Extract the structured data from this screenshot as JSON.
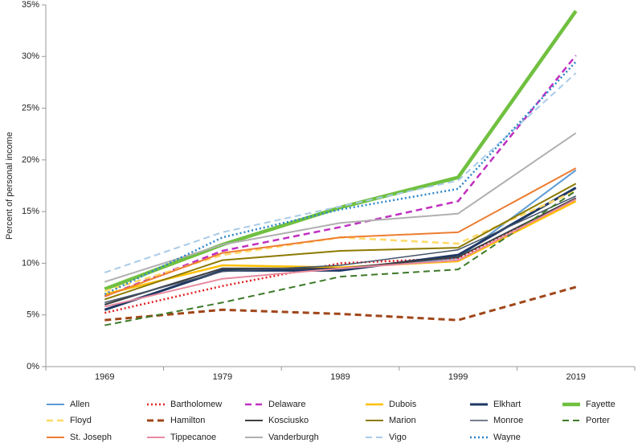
{
  "chart_data": {
    "type": "line",
    "y_label": "Percent of personal income",
    "categories": [
      "1969",
      "1979",
      "1989",
      "1999",
      "2019"
    ],
    "ylim": [
      0,
      35
    ],
    "yticks": [
      {
        "value": 0,
        "label": "0%"
      },
      {
        "value": 5,
        "label": "5%"
      },
      {
        "value": 10,
        "label": "10%"
      },
      {
        "value": 15,
        "label": "15%"
      },
      {
        "value": 20,
        "label": "20%"
      },
      {
        "value": 25,
        "label": "25%"
      },
      {
        "value": 30,
        "label": "30%"
      },
      {
        "value": 35,
        "label": "35%"
      }
    ],
    "series": [
      {
        "name": "Allen",
        "color": "#5b9bd5",
        "dash": "solid",
        "line_width": 2,
        "values": [
          6.0,
          9.5,
          9.5,
          10.5,
          19.0
        ]
      },
      {
        "name": "Bartholomew",
        "color": "#e02020",
        "dash": "dotted",
        "line_width": 2.5,
        "values": [
          5.2,
          7.8,
          10.0,
          10.5,
          16.2
        ]
      },
      {
        "name": "Delaware",
        "color": "#c030c0",
        "dash": "dashed",
        "line_width": 2.5,
        "values": [
          6.8,
          11.2,
          13.5,
          16.0,
          30.1
        ]
      },
      {
        "name": "Dubois",
        "color": "#ffc000",
        "dash": "solid",
        "line_width": 2.5,
        "values": [
          7.0,
          9.8,
          9.6,
          10.2,
          16.0
        ]
      },
      {
        "name": "Elkhart",
        "color": "#1f3864",
        "dash": "solid",
        "line_width": 3,
        "values": [
          5.5,
          9.3,
          9.3,
          10.8,
          17.3
        ]
      },
      {
        "name": "Fayette",
        "color": "#70c040",
        "dash": "solid",
        "line_width": 4.5,
        "values": [
          7.5,
          11.8,
          15.4,
          18.3,
          34.4
        ]
      },
      {
        "name": "Floyd",
        "color": "#ffd966",
        "dash": "dashed",
        "line_width": 2.5,
        "values": [
          7.3,
          10.8,
          12.5,
          11.9,
          17.0
        ]
      },
      {
        "name": "Hamilton",
        "color": "#a0461a",
        "dash": "dashed",
        "line_width": 3,
        "values": [
          4.5,
          5.5,
          5.1,
          4.5,
          7.7
        ]
      },
      {
        "name": "Kosciusko",
        "color": "#404040",
        "dash": "solid",
        "line_width": 2,
        "values": [
          6.0,
          9.5,
          9.5,
          10.6,
          16.3
        ]
      },
      {
        "name": "Marion",
        "color": "#8c7a00",
        "dash": "solid",
        "line_width": 2,
        "values": [
          6.5,
          10.3,
          11.2,
          11.5,
          17.7
        ]
      },
      {
        "name": "Monroe",
        "color": "#44546a",
        "dash": "solid",
        "line_width": 1.5,
        "values": [
          6.2,
          9.2,
          9.8,
          11.3,
          16.5
        ]
      },
      {
        "name": "Porter",
        "color": "#3d7a28",
        "dash": "dashed",
        "line_width": 2,
        "values": [
          4.0,
          6.2,
          8.7,
          9.4,
          17.0
        ]
      },
      {
        "name": "St. Joseph",
        "color": "#ed7d31",
        "dash": "solid",
        "line_width": 2,
        "values": [
          6.8,
          11.0,
          12.5,
          13.0,
          19.2
        ]
      },
      {
        "name": "Tippecanoe",
        "color": "#e88aa0",
        "dash": "solid",
        "line_width": 2,
        "values": [
          5.8,
          8.5,
          9.5,
          10.3,
          16.2
        ]
      },
      {
        "name": "Vanderburgh",
        "color": "#b0b0b0",
        "dash": "solid",
        "line_width": 2,
        "values": [
          8.2,
          11.8,
          13.9,
          14.8,
          22.6
        ]
      },
      {
        "name": "Vigo",
        "color": "#a9cbe8",
        "dash": "dashed",
        "line_width": 2,
        "values": [
          9.1,
          13.0,
          15.5,
          18.0,
          28.4
        ]
      },
      {
        "name": "Wayne",
        "color": "#2e86c8",
        "dash": "dotted",
        "line_width": 2.5,
        "values": [
          7.0,
          12.5,
          15.2,
          17.2,
          29.5
        ]
      }
    ]
  }
}
